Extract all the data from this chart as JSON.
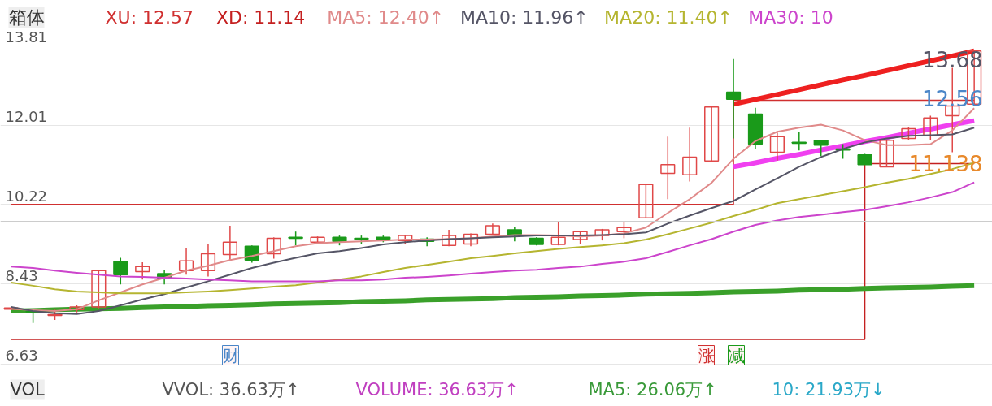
{
  "chart_data": {
    "type": "candlestick",
    "title": "箱体",
    "legend": "top",
    "grid": "y",
    "categories": [
      null,
      null,
      null,
      null,
      null,
      null,
      null,
      null,
      null,
      null,
      null,
      null,
      null,
      null,
      null,
      null,
      null,
      null,
      null,
      null,
      null,
      null,
      null,
      null,
      null,
      null,
      null,
      null,
      null,
      null,
      null,
      null,
      null,
      null,
      null,
      null,
      null,
      null,
      null,
      null,
      null,
      null,
      null,
      null,
      null
    ],
    "ylim": [
      5.67,
      14.82
    ],
    "yticks": [
      13.81,
      12.01,
      10.22,
      8.43,
      6.63
    ],
    "ohlc": [
      [
        7.86,
        7.9,
        7.84,
        7.89
      ],
      [
        7.82,
        7.84,
        7.55,
        7.8
      ],
      [
        7.72,
        7.85,
        7.62,
        7.74
      ],
      [
        7.85,
        7.95,
        7.79,
        7.91
      ],
      [
        7.91,
        8.73,
        7.88,
        8.73
      ],
      [
        8.93,
        9.02,
        8.42,
        8.64
      ],
      [
        8.71,
        8.92,
        8.53,
        8.82
      ],
      [
        8.66,
        8.75,
        8.42,
        8.56
      ],
      [
        8.73,
        9.24,
        8.64,
        8.95
      ],
      [
        8.73,
        9.33,
        8.6,
        9.11
      ],
      [
        9.09,
        9.74,
        8.97,
        9.37
      ],
      [
        9.28,
        9.3,
        8.91,
        8.97
      ],
      [
        9.11,
        9.48,
        9.0,
        9.46
      ],
      [
        9.48,
        9.61,
        9.3,
        9.46
      ],
      [
        9.37,
        9.5,
        9.35,
        9.48
      ],
      [
        9.48,
        9.52,
        9.3,
        9.39
      ],
      [
        9.46,
        9.52,
        9.33,
        9.44
      ],
      [
        9.48,
        9.52,
        9.37,
        9.44
      ],
      [
        9.41,
        9.52,
        9.33,
        9.52
      ],
      [
        9.44,
        9.48,
        9.28,
        9.39
      ],
      [
        9.3,
        9.65,
        9.28,
        9.52
      ],
      [
        9.33,
        9.57,
        9.28,
        9.55
      ],
      [
        9.55,
        9.79,
        9.52,
        9.74
      ],
      [
        9.65,
        9.72,
        9.39,
        9.55
      ],
      [
        9.46,
        9.48,
        9.3,
        9.32
      ],
      [
        9.32,
        9.83,
        9.3,
        9.48
      ],
      [
        9.43,
        9.63,
        9.33,
        9.61
      ],
      [
        9.52,
        9.67,
        9.41,
        9.65
      ],
      [
        9.61,
        9.83,
        9.46,
        9.7
      ],
      [
        9.92,
        10.67,
        9.92,
        10.67
      ],
      [
        10.92,
        11.75,
        10.34,
        11.12
      ],
      [
        10.89,
        11.95,
        10.74,
        11.29
      ],
      [
        11.2,
        12.42,
        11.2,
        12.42
      ],
      [
        12.75,
        13.5,
        11.71,
        12.59
      ],
      [
        12.26,
        12.4,
        11.47,
        11.58
      ],
      [
        11.4,
        11.84,
        11.21,
        11.75
      ],
      [
        11.62,
        11.86,
        11.44,
        11.6
      ],
      [
        11.67,
        11.67,
        11.31,
        11.56
      ],
      [
        11.47,
        11.58,
        11.25,
        11.45
      ],
      [
        11.34,
        11.36,
        11.12,
        11.12
      ],
      [
        11.07,
        11.67,
        11.07,
        11.67
      ],
      [
        11.71,
        11.97,
        11.67,
        11.93
      ],
      [
        11.77,
        12.22,
        11.67,
        12.17
      ],
      [
        12.22,
        13.3,
        11.4,
        12.44
      ],
      [
        12.48,
        13.68,
        12.48,
        13.68
      ]
    ],
    "series": [
      {
        "name": "XU: 12.57",
        "type": "step",
        "color": "#d03030",
        "values": [
          10.22,
          10.22,
          10.22,
          10.22,
          10.22,
          10.22,
          10.22,
          10.22,
          10.22,
          10.22,
          10.22,
          10.22,
          10.22,
          10.22,
          10.22,
          10.22,
          10.22,
          10.22,
          10.22,
          10.22,
          10.22,
          10.22,
          10.22,
          10.22,
          10.22,
          10.22,
          10.22,
          10.22,
          10.22,
          10.22,
          10.22,
          10.22,
          10.22,
          12.57,
          12.57,
          12.57,
          12.57,
          12.57,
          12.57,
          12.57,
          12.57,
          12.57,
          12.57,
          12.57,
          12.57
        ]
      },
      {
        "name": "XD: 11.14",
        "type": "step",
        "color": "#c42020",
        "values": [
          7.18,
          7.18,
          7.18,
          7.18,
          7.18,
          7.18,
          7.18,
          7.18,
          7.18,
          7.18,
          7.18,
          7.18,
          7.18,
          7.18,
          7.18,
          7.18,
          7.18,
          7.18,
          7.18,
          7.18,
          7.18,
          7.18,
          7.18,
          7.18,
          7.18,
          7.18,
          7.18,
          7.18,
          7.18,
          7.18,
          7.18,
          7.18,
          7.18,
          7.18,
          7.18,
          7.18,
          7.18,
          7.18,
          7.18,
          11.14,
          11.14,
          11.14,
          11.14,
          11.14,
          11.14
        ]
      },
      {
        "name": "MA5: 12.40↑",
        "type": "line",
        "color": "#e08a8a",
        "values": [
          7.87,
          7.84,
          7.82,
          7.86,
          8.06,
          8.24,
          8.42,
          8.57,
          8.73,
          8.84,
          8.97,
          9.06,
          9.17,
          9.28,
          9.35,
          9.37,
          9.39,
          9.41,
          9.43,
          9.43,
          9.44,
          9.46,
          9.5,
          9.53,
          9.53,
          9.52,
          9.5,
          9.52,
          9.57,
          9.7,
          10.03,
          10.34,
          10.71,
          11.25,
          11.65,
          11.86,
          11.95,
          12.02,
          11.89,
          11.67,
          11.56,
          11.56,
          11.58,
          11.89,
          12.39
        ]
      },
      {
        "name": "MA10: 11.96↑",
        "type": "line",
        "color": "#555566",
        "values": [
          7.91,
          7.82,
          7.77,
          7.75,
          7.82,
          7.95,
          8.08,
          8.2,
          8.35,
          8.49,
          8.64,
          8.79,
          8.91,
          9.02,
          9.12,
          9.17,
          9.24,
          9.32,
          9.37,
          9.41,
          9.44,
          9.46,
          9.48,
          9.5,
          9.52,
          9.52,
          9.52,
          9.53,
          9.55,
          9.59,
          9.79,
          9.97,
          10.14,
          10.3,
          10.56,
          10.81,
          11.07,
          11.29,
          11.47,
          11.62,
          11.71,
          11.77,
          11.78,
          11.8,
          11.95
        ]
      },
      {
        "name": "MA20: 11.40↑",
        "type": "line",
        "color": "#b5b530",
        "values": [
          8.46,
          8.39,
          8.31,
          8.26,
          8.24,
          8.22,
          8.22,
          8.22,
          8.24,
          8.26,
          8.29,
          8.33,
          8.37,
          8.4,
          8.46,
          8.53,
          8.6,
          8.7,
          8.79,
          8.86,
          8.93,
          9.01,
          9.06,
          9.12,
          9.17,
          9.22,
          9.26,
          9.3,
          9.35,
          9.43,
          9.55,
          9.68,
          9.81,
          9.96,
          10.1,
          10.25,
          10.34,
          10.43,
          10.52,
          10.61,
          10.71,
          10.8,
          10.91,
          11.02,
          11.16
        ]
      },
      {
        "name": "MA30: 10",
        "type": "line",
        "color": "#cc44cc",
        "values": [
          8.82,
          8.79,
          8.73,
          8.68,
          8.64,
          8.6,
          8.59,
          8.57,
          8.55,
          8.53,
          8.51,
          8.49,
          8.49,
          8.49,
          8.49,
          8.51,
          8.51,
          8.53,
          8.57,
          8.59,
          8.62,
          8.66,
          8.7,
          8.73,
          8.75,
          8.79,
          8.82,
          8.88,
          8.93,
          9.01,
          9.15,
          9.3,
          9.44,
          9.61,
          9.76,
          9.86,
          9.94,
          9.99,
          10.05,
          10.1,
          10.18,
          10.27,
          10.38,
          10.5,
          10.72
        ]
      },
      {
        "type": "line",
        "color": "#3aa02a",
        "values": [
          7.82,
          7.83,
          7.85,
          7.86,
          7.87,
          7.88,
          7.9,
          7.91,
          7.92,
          7.94,
          7.95,
          7.96,
          7.98,
          7.99,
          8.0,
          8.01,
          8.03,
          8.04,
          8.05,
          8.07,
          8.08,
          8.09,
          8.1,
          8.12,
          8.13,
          8.14,
          8.16,
          8.17,
          8.18,
          8.2,
          8.21,
          8.22,
          8.23,
          8.25,
          8.26,
          8.27,
          8.29,
          8.3,
          8.31,
          8.33,
          8.34,
          8.35,
          8.36,
          8.38,
          8.39
        ]
      },
      {
        "type": "line",
        "color": "#ee2020",
        "values": [
          null,
          null,
          null,
          null,
          null,
          null,
          null,
          null,
          null,
          null,
          null,
          null,
          null,
          null,
          null,
          null,
          null,
          null,
          null,
          null,
          null,
          null,
          null,
          null,
          null,
          null,
          null,
          null,
          null,
          null,
          null,
          null,
          null,
          12.48,
          12.59,
          12.7,
          12.81,
          12.92,
          13.03,
          13.13,
          13.24,
          13.35,
          13.46,
          13.57,
          13.68
        ]
      },
      {
        "type": "line",
        "color": "#f040f0",
        "values": [
          null,
          null,
          null,
          null,
          null,
          null,
          null,
          null,
          null,
          null,
          null,
          null,
          null,
          null,
          null,
          null,
          null,
          null,
          null,
          null,
          null,
          null,
          null,
          null,
          null,
          null,
          null,
          null,
          null,
          null,
          null,
          null,
          null,
          11.07,
          11.16,
          11.26,
          11.35,
          11.45,
          11.54,
          11.64,
          11.73,
          11.83,
          11.92,
          12.02,
          12.11
        ]
      }
    ],
    "ref_lines": [
      {
        "axis": "y",
        "value": 9.84,
        "color": "#cccccc"
      }
    ],
    "annotations": [
      "13.68",
      "12.56",
      "11.138",
      "财",
      "涨",
      "减",
      "VOL",
      "VVOL: 36.63万↑",
      "VOLUME: 36.63万↑",
      "MA5: 26.06万↑",
      "10: 21.93万↓"
    ]
  }
}
